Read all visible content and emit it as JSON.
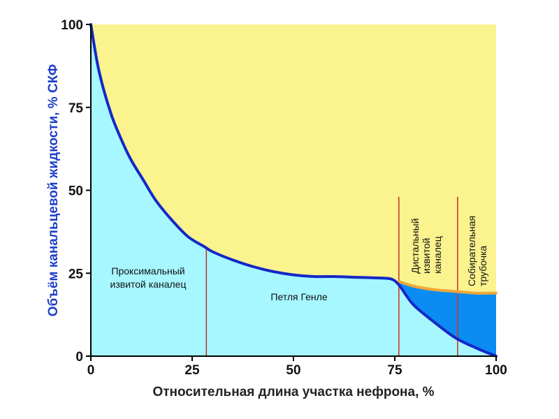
{
  "chart_data": {
    "type": "area",
    "xlabel": "Относительная длина участка нефрона, %",
    "ylabel": "Объём канальцевой жидкости, % СКФ",
    "xlim": [
      0,
      100
    ],
    "ylim": [
      0,
      100
    ],
    "x_ticks": [
      "0",
      "25",
      "50",
      "75",
      "100"
    ],
    "y_ticks": [
      "0",
      "25",
      "50",
      "75",
      "100"
    ],
    "grid": false,
    "series": [
      {
        "x": [
          0,
          2,
          5,
          8,
          10,
          13,
          16,
          20,
          24,
          28,
          30,
          35,
          40,
          45,
          50,
          55,
          60,
          65,
          70,
          74,
          76,
          78,
          80,
          85,
          90,
          95,
          100
        ],
        "y": [
          100,
          86,
          73,
          64,
          59,
          53,
          47,
          41,
          36,
          33,
          31.5,
          29,
          27,
          25.5,
          24.5,
          24,
          24,
          23.8,
          23.6,
          23.3,
          21.5,
          18,
          15,
          10,
          5.5,
          2.5,
          0
        ]
      },
      {
        "x": [
          76,
          80,
          85,
          90,
          95,
          100
        ],
        "y": [
          22.5,
          21,
          20,
          19.5,
          19,
          19
        ]
      }
    ],
    "boundaries": [
      28.5,
      76,
      90.5
    ],
    "regions": [
      {
        "label_lines": [
          "Проксимальный",
          "извитой каналец"
        ]
      },
      {
        "label_lines": [
          "Петля Генле"
        ]
      },
      {
        "label_lines": [
          "Дистальный",
          "извитой",
          "каналец"
        ]
      },
      {
        "label_lines": [
          "Собирательная",
          "трубочка"
        ]
      }
    ],
    "colors": {
      "background": "#FAF38E",
      "filtrate": "#A6F7FF",
      "collecting_fill": "#0A8CF2",
      "main_curve": "#1428C8",
      "upper_curve": "#F0A838",
      "boundary": "#C83A2A",
      "axis": "#000000",
      "ylabel": "#1E3EC8"
    }
  }
}
